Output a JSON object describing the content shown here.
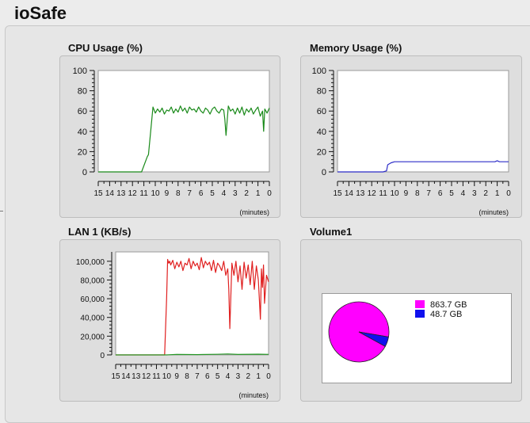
{
  "app": {
    "title": "ioSafe"
  },
  "panels": {
    "cpu": {
      "title": "CPU Usage (%)"
    },
    "memory": {
      "title": "Memory Usage (%)"
    },
    "lan": {
      "title": "LAN 1 (KB/s)"
    },
    "volume": {
      "title": "Volume1"
    }
  },
  "chart_data": [
    {
      "id": "cpu",
      "type": "line",
      "title": "CPU Usage (%)",
      "xlabel": "(minutes)",
      "ylabel": "",
      "xlim": [
        15,
        0
      ],
      "ylim": [
        0,
        100
      ],
      "yticks": [
        0,
        20,
        40,
        60,
        80,
        100
      ],
      "ytick_labels": [
        "0",
        "20",
        "40",
        "60",
        "80",
        "100"
      ],
      "xtick_labels": [
        "15",
        "14",
        "13",
        "12",
        "11",
        "10",
        "9",
        "8",
        "7",
        "6",
        "5",
        "4",
        "3",
        "2",
        "1",
        "0"
      ],
      "grid": false,
      "series": [
        {
          "color": "#1a8a1a",
          "x": [
            15,
            13,
            11.2,
            10.7,
            10.6,
            10.4,
            10.2,
            10.0,
            9.8,
            9.6,
            9.4,
            9.2,
            9.0,
            8.8,
            8.6,
            8.4,
            8.2,
            8.0,
            7.8,
            7.6,
            7.4,
            7.2,
            7.0,
            6.8,
            6.6,
            6.4,
            6.2,
            6.0,
            5.8,
            5.6,
            5.4,
            5.2,
            5.0,
            4.8,
            4.6,
            4.4,
            4.2,
            4.0,
            3.9,
            3.8,
            3.6,
            3.4,
            3.2,
            3.0,
            2.8,
            2.6,
            2.4,
            2.2,
            2.0,
            1.8,
            1.6,
            1.4,
            1.2,
            1.0,
            0.8,
            0.6,
            0.5,
            0.4,
            0.2,
            0.0
          ],
          "y": [
            0,
            0,
            0,
            15,
            17,
            40,
            64,
            58,
            62,
            59,
            63,
            57,
            61,
            60,
            64,
            58,
            62,
            59,
            65,
            60,
            63,
            58,
            64,
            61,
            62,
            59,
            64,
            60,
            58,
            63,
            61,
            57,
            62,
            64,
            60,
            58,
            62,
            61,
            52,
            36,
            65,
            60,
            62,
            57,
            63,
            58,
            64,
            56,
            62,
            59,
            63,
            57,
            61,
            64,
            55,
            60,
            40,
            62,
            58,
            63
          ]
        }
      ]
    },
    {
      "id": "memory",
      "type": "line",
      "title": "Memory Usage (%)",
      "xlabel": "(minutes)",
      "ylabel": "",
      "xlim": [
        15,
        0
      ],
      "ylim": [
        0,
        100
      ],
      "yticks": [
        0,
        20,
        40,
        60,
        80,
        100
      ],
      "ytick_labels": [
        "0",
        "20",
        "40",
        "60",
        "80",
        "100"
      ],
      "xtick_labels": [
        "15",
        "14",
        "13",
        "12",
        "11",
        "10",
        "9",
        "8",
        "7",
        "6",
        "5",
        "4",
        "3",
        "2",
        "1",
        "0"
      ],
      "grid": false,
      "series": [
        {
          "color": "#2c2cc8",
          "x": [
            15,
            13,
            11.0,
            10.7,
            10.6,
            10.3,
            10.0,
            9.0,
            8.0,
            7.0,
            6.0,
            5.0,
            4.0,
            3.0,
            2.0,
            1.2,
            1.0,
            0.8,
            0.0
          ],
          "y": [
            0,
            0,
            0,
            1,
            7,
            9,
            10,
            10,
            10,
            10,
            10,
            10,
            10,
            10,
            10,
            10,
            11,
            10,
            10
          ]
        }
      ]
    },
    {
      "id": "lan",
      "type": "line",
      "title": "LAN 1 (KB/s)",
      "xlabel": "(minutes)",
      "ylabel": "",
      "xlim": [
        15,
        0
      ],
      "ylim": [
        0,
        110000
      ],
      "yticks": [
        0,
        20000,
        40000,
        60000,
        80000,
        100000
      ],
      "ytick_labels": [
        "0",
        "20,000",
        "40,000",
        "60,000",
        "80,000",
        "100,000"
      ],
      "xtick_labels": [
        "15",
        "14",
        "13",
        "12",
        "11",
        "10",
        "9",
        "8",
        "7",
        "6",
        "5",
        "4",
        "3",
        "2",
        "1",
        "0"
      ],
      "grid": false,
      "series": [
        {
          "color": "#e02020",
          "x": [
            15,
            12,
            10.2,
            10.0,
            9.9,
            9.8,
            9.7,
            9.6,
            9.4,
            9.2,
            9.0,
            8.8,
            8.6,
            8.4,
            8.2,
            8.0,
            7.8,
            7.6,
            7.4,
            7.2,
            7.0,
            6.8,
            6.6,
            6.4,
            6.2,
            6.0,
            5.8,
            5.6,
            5.4,
            5.2,
            5.0,
            4.8,
            4.6,
            4.4,
            4.2,
            4.0,
            3.9,
            3.8,
            3.6,
            3.4,
            3.2,
            3.0,
            2.8,
            2.6,
            2.4,
            2.2,
            2.0,
            1.8,
            1.6,
            1.4,
            1.2,
            1.0,
            0.8,
            0.7,
            0.6,
            0.5,
            0.4,
            0.2,
            0.0
          ],
          "y": [
            0,
            0,
            0,
            60000,
            102000,
            98000,
            100000,
            96000,
            101000,
            92000,
            99000,
            94000,
            100000,
            90000,
            98000,
            96000,
            103000,
            92000,
            100000,
            95000,
            98000,
            91000,
            104000,
            93000,
            100000,
            96000,
            99000,
            90000,
            101000,
            88000,
            98000,
            95000,
            90000,
            100000,
            85000,
            92000,
            70000,
            28000,
            98000,
            85000,
            100000,
            78000,
            95000,
            70000,
            99000,
            82000,
            96000,
            75000,
            100000,
            70000,
            95000,
            80000,
            38000,
            92000,
            72000,
            96000,
            55000,
            85000,
            78000
          ]
        },
        {
          "color": "#2a9a2a",
          "x": [
            15,
            10,
            9,
            7,
            5,
            4,
            3,
            1,
            0
          ],
          "y": [
            0,
            0,
            500,
            300,
            700,
            1000,
            500,
            800,
            600
          ]
        }
      ]
    },
    {
      "id": "volume",
      "type": "pie",
      "title": "Volume1",
      "labels": [
        "863.7 GB",
        "48.7 GB"
      ],
      "values": [
        863.7,
        48.7
      ],
      "colors": [
        "#ff00ff",
        "#1010ee"
      ],
      "legend": "right"
    }
  ]
}
